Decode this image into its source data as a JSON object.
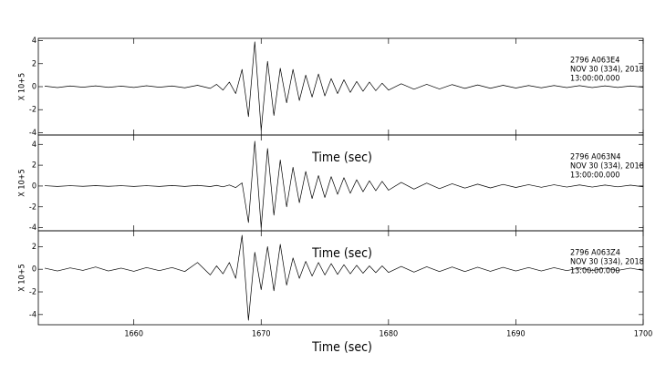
{
  "chart_data": [
    {
      "type": "line",
      "y_label": "X 10+5",
      "x_label": "Time (sec)",
      "annotations": [
        "2796   A063E4",
        "NOV 30 (334), 2018",
        "13:00:00.000"
      ],
      "xlim": [
        1652.5,
        1700
      ],
      "xticks": [
        1660,
        1670,
        1680,
        1690,
        1700
      ],
      "ylim": [
        -4.2,
        4.2
      ],
      "yticks": [
        -4,
        -2,
        0,
        2,
        4
      ],
      "x": [
        1653,
        1654,
        1655,
        1656,
        1657,
        1658,
        1659,
        1660,
        1661,
        1662,
        1663,
        1664,
        1665,
        1666,
        1666.5,
        1667,
        1667.5,
        1668,
        1668.5,
        1669,
        1669.5,
        1670,
        1670.5,
        1671,
        1671.5,
        1672,
        1672.5,
        1673,
        1673.5,
        1674,
        1674.5,
        1675,
        1675.5,
        1676,
        1676.5,
        1677,
        1677.5,
        1678,
        1678.5,
        1679,
        1679.5,
        1680,
        1681,
        1682,
        1683,
        1684,
        1685,
        1686,
        1687,
        1688,
        1689,
        1690,
        1691,
        1692,
        1693,
        1694,
        1695,
        1696,
        1697,
        1698,
        1699,
        1700
      ],
      "series": [
        {
          "color": "#000000",
          "values": [
            0.05,
            -0.08,
            0.06,
            -0.05,
            0.07,
            -0.06,
            0.05,
            -0.07,
            0.08,
            -0.05,
            0.06,
            -0.1,
            0.12,
            -0.15,
            0.2,
            -0.3,
            0.4,
            -0.6,
            1.5,
            -2.6,
            3.9,
            -3.8,
            2.2,
            -2.5,
            1.6,
            -1.4,
            1.5,
            -1.2,
            1.0,
            -0.9,
            1.1,
            -0.8,
            0.7,
            -0.6,
            0.6,
            -0.5,
            0.45,
            -0.4,
            0.4,
            -0.35,
            0.3,
            -0.3,
            0.25,
            -0.22,
            0.2,
            -0.2,
            0.18,
            -0.15,
            0.15,
            -0.14,
            0.12,
            -0.12,
            0.1,
            -0.1,
            0.1,
            -0.08,
            0.09,
            -0.08,
            0.07,
            -0.07,
            0.06,
            -0.05
          ]
        }
      ]
    },
    {
      "type": "line",
      "y_label": "X 10+5",
      "x_label": "Time (sec)",
      "annotations": [
        "2796   A063N4",
        "NOV 30 (334), 2018",
        "13:00:00.000"
      ],
      "xlim": [
        1652.5,
        1700
      ],
      "xticks": [
        1660,
        1670,
        1680,
        1690,
        1700
      ],
      "ylim": [
        -4.3,
        4.9
      ],
      "yticks": [
        -4,
        -2,
        0,
        2,
        4
      ],
      "x": [
        1653,
        1654,
        1655,
        1656,
        1657,
        1658,
        1659,
        1660,
        1661,
        1662,
        1663,
        1664,
        1665,
        1666,
        1666.5,
        1667,
        1667.5,
        1668,
        1668.5,
        1669,
        1669.5,
        1670,
        1670.5,
        1671,
        1671.5,
        1672,
        1672.5,
        1673,
        1673.5,
        1674,
        1674.5,
        1675,
        1675.5,
        1676,
        1676.5,
        1677,
        1677.5,
        1678,
        1678.5,
        1679,
        1679.5,
        1680,
        1681,
        1682,
        1683,
        1684,
        1685,
        1686,
        1687,
        1688,
        1689,
        1690,
        1691,
        1692,
        1693,
        1694,
        1695,
        1696,
        1697,
        1698,
        1699,
        1700
      ],
      "series": [
        {
          "color": "#000000",
          "values": [
            0.03,
            -0.04,
            0.03,
            -0.03,
            0.04,
            -0.03,
            0.03,
            -0.04,
            0.03,
            -0.04,
            0.05,
            -0.04,
            0.06,
            -0.05,
            0.06,
            -0.08,
            0.1,
            -0.15,
            0.3,
            -3.5,
            4.3,
            -4.0,
            3.6,
            -2.8,
            2.5,
            -2.0,
            1.8,
            -1.6,
            1.4,
            -1.2,
            1.0,
            -1.1,
            0.9,
            -0.8,
            0.8,
            -0.7,
            0.6,
            -0.55,
            0.5,
            -0.45,
            0.45,
            -0.4,
            0.35,
            -0.3,
            0.28,
            -0.25,
            0.22,
            -0.2,
            0.18,
            -0.18,
            0.15,
            -0.14,
            0.13,
            -0.12,
            0.12,
            -0.1,
            0.1,
            -0.1,
            0.09,
            -0.08,
            0.08,
            -0.07
          ]
        }
      ]
    },
    {
      "type": "line",
      "y_label": "X 10+5",
      "x_label": "Time (sec)",
      "annotations": [
        "2796   A063Z4",
        "NOV 30 (334), 2018",
        "13:00:00.000"
      ],
      "xlim": [
        1652.5,
        1700
      ],
      "xticks": [
        1660,
        1670,
        1680,
        1690,
        1700
      ],
      "ylim": [
        -4.9,
        3.4
      ],
      "yticks": [
        -4,
        -2,
        0,
        2
      ],
      "x": [
        1653,
        1654,
        1655,
        1656,
        1657,
        1658,
        1659,
        1660,
        1661,
        1662,
        1663,
        1664,
        1665,
        1666,
        1666.5,
        1667,
        1667.5,
        1668,
        1668.5,
        1669,
        1669.5,
        1670,
        1670.5,
        1671,
        1671.5,
        1672,
        1672.5,
        1673,
        1673.5,
        1674,
        1674.5,
        1675,
        1675.5,
        1676,
        1676.5,
        1677,
        1677.5,
        1678,
        1678.5,
        1679,
        1679.5,
        1680,
        1681,
        1682,
        1683,
        1684,
        1685,
        1686,
        1687,
        1688,
        1689,
        1690,
        1691,
        1692,
        1693,
        1694,
        1695,
        1696,
        1697,
        1698,
        1699,
        1700
      ],
      "series": [
        {
          "color": "#000000",
          "values": [
            0.1,
            -0.15,
            0.12,
            -0.1,
            0.2,
            -0.15,
            0.1,
            -0.18,
            0.15,
            -0.12,
            0.15,
            -0.2,
            0.6,
            -0.5,
            0.3,
            -0.4,
            0.6,
            -0.8,
            3.0,
            -4.5,
            1.5,
            -1.8,
            2.0,
            -1.9,
            2.2,
            -1.4,
            1.0,
            -0.8,
            0.7,
            -0.6,
            0.6,
            -0.5,
            0.5,
            -0.45,
            0.4,
            -0.4,
            0.35,
            -0.35,
            0.3,
            -0.3,
            0.3,
            -0.28,
            0.25,
            -0.25,
            0.22,
            -0.2,
            0.2,
            -0.2,
            0.18,
            -0.18,
            0.17,
            -0.15,
            0.15,
            -0.15,
            0.14,
            -0.12,
            0.12,
            -0.12,
            0.1,
            -0.1,
            0.1,
            -0.1
          ]
        }
      ]
    }
  ]
}
